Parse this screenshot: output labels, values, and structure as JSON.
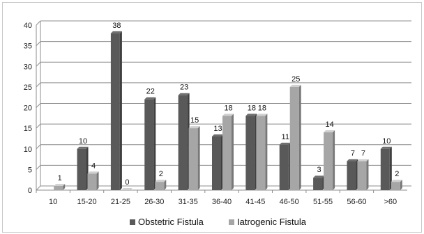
{
  "chart_data": {
    "type": "bar",
    "style": "3d-clustered-column",
    "categories": [
      "10",
      "15-20",
      "21-25",
      "26-30",
      "31-35",
      "36-40",
      "41-45",
      "46-50",
      "51-55",
      "56-60",
      ">60"
    ],
    "series": [
      {
        "name": "Obstetric Fistula",
        "color": "#595959",
        "values": [
          null,
          10,
          38,
          22,
          23,
          13,
          18,
          11,
          3,
          7,
          10
        ]
      },
      {
        "name": "Iatrogenic Fistula",
        "color": "#a6a6a6",
        "values": [
          1,
          4,
          0,
          2,
          15,
          18,
          18,
          25,
          14,
          7,
          2
        ]
      }
    ],
    "ylim": [
      0,
      40
    ],
    "yticks": [
      0,
      5,
      10,
      15,
      20,
      25,
      30,
      35,
      40
    ],
    "grid": true,
    "legend_position": "bottom",
    "data_labels": true
  }
}
